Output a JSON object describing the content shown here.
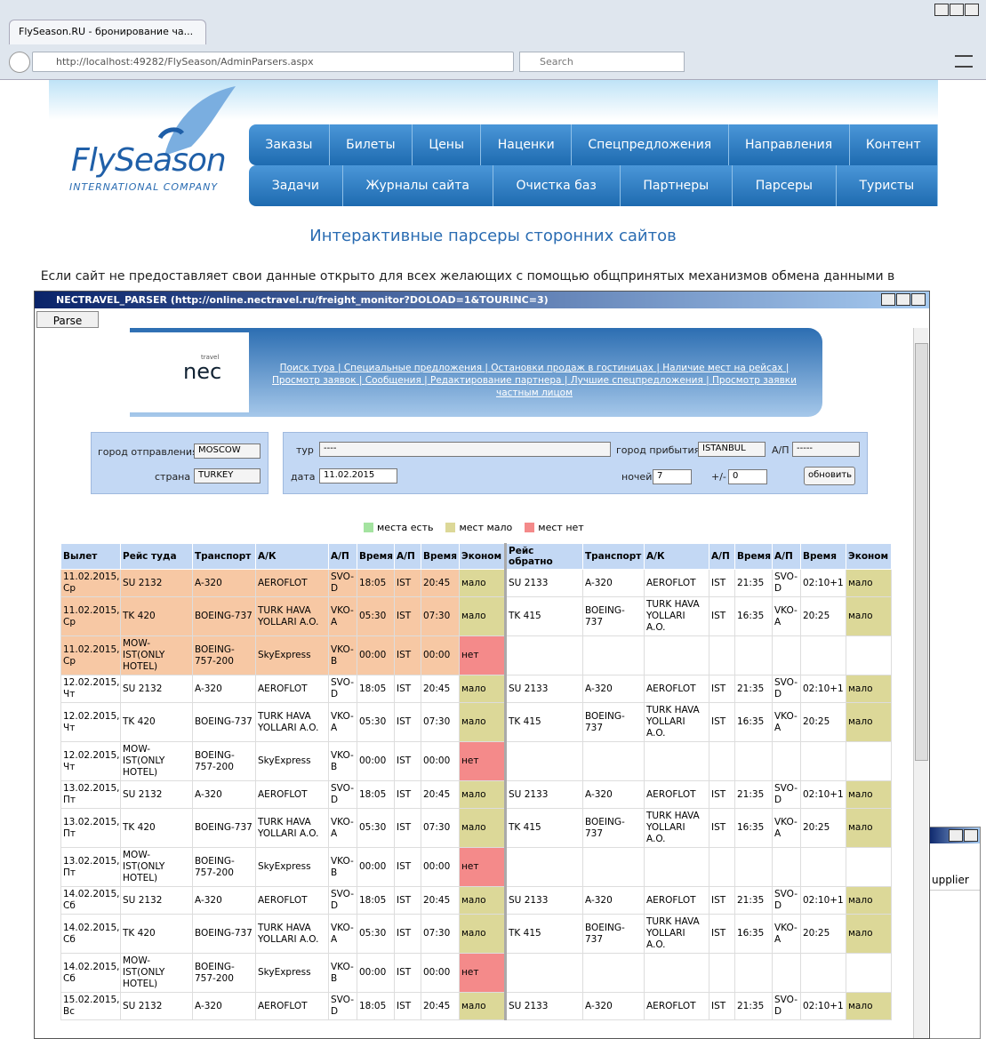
{
  "browser": {
    "tab_title": "FlySeason.RU - бронирование ча...",
    "url": "http://localhost:49282/FlySeason/AdminParsers.aspx",
    "search_placeholder": "Search"
  },
  "site": {
    "logo": "FlySeason",
    "logo_sub": "INTERNATIONAL COMPANY",
    "nav_row1": [
      "Заказы",
      "Билеты",
      "Цены",
      "Наценки",
      "Спецпредложения",
      "Направления",
      "Контент"
    ],
    "nav_row2": [
      "Задачи",
      "Журналы сайта",
      "Очистка баз",
      "Партнеры",
      "Парсеры",
      "Туристы"
    ],
    "heading": "Интерактивные парсеры сторонних сайтов",
    "intro": "Если сайт не предоставляет свои данные открыто для всех желающих с помощью общпринятых механизмов обмена данными в"
  },
  "window": {
    "title": "NECTRAVEL_PARSER  (http://online.nectravel.ru/freight_monitor?DOLOAD=1&TOURINC=3)",
    "parse_button": "Parse"
  },
  "nec": {
    "logo_small": "travel",
    "logo": "nec",
    "links": [
      "Поиск тура",
      "Специальные предложения",
      "Остановки продаж в гостиницах",
      "Наличие мест на рейсах",
      "Просмотр заявок",
      "Сообщения",
      "Редактирование партнера",
      "Лучшие спецпредложения",
      "Просмотр заявки частным лицом"
    ]
  },
  "form": {
    "departure_label": "город отправления",
    "departure": "MOSCOW",
    "country_label": "страна",
    "country": "TURKEY",
    "tour_label": "тур",
    "tour": "----",
    "arrival_label": "город прибытия",
    "arrival": "ISTANBUL",
    "airport_label": "А/П",
    "airport": "-----",
    "date_label": "дата",
    "date": "11.02.2015",
    "nights_label": "ночей",
    "nights": "7",
    "delta_label": "+/-",
    "delta": "0",
    "refresh_button": "обновить"
  },
  "legend": [
    {
      "label": "места есть",
      "color": "#a4e3a0"
    },
    {
      "label": "мест мало",
      "color": "#dcd898"
    },
    {
      "label": "мест нет",
      "color": "#f48a8a"
    }
  ],
  "economy_colors": {
    "мало": "#dcd898",
    "нет": "#f48a8a"
  },
  "table": {
    "headers": [
      "Вылет",
      "Рейс туда",
      "Транспорт",
      "А/К",
      "А/П",
      "Время",
      "А/П",
      "Время",
      "Эконом",
      "Рейс обратно",
      "Транспорт",
      "А/К",
      "А/П",
      "Время",
      "А/П",
      "Время",
      "Эконом"
    ],
    "rows": [
      [
        "11.02.2015, Ср",
        "SU 2132",
        "A-320",
        "AEROFLOT",
        "SVO-D",
        "18:05",
        "IST",
        "20:45",
        "мало",
        "SU 2133",
        "A-320",
        "AEROFLOT",
        "IST",
        "21:35",
        "SVO-D",
        "02:10+1",
        "мало"
      ],
      [
        "11.02.2015, Ср",
        "TK 420",
        "BOEING-737",
        "TURK HAVA YOLLARI A.O.",
        "VKO-A",
        "05:30",
        "IST",
        "07:30",
        "мало",
        "TK 415",
        "BOEING-737",
        "TURK HAVA YOLLARI A.O.",
        "IST",
        "16:35",
        "VKO-A",
        "20:25",
        "мало"
      ],
      [
        "11.02.2015, Ср",
        "MOW-IST(ONLY HOTEL)",
        "BOEING-757-200",
        "SkyExpress",
        "VKO-B",
        "00:00",
        "IST",
        "00:00",
        "нет",
        null,
        null,
        null,
        null,
        null,
        null,
        null,
        null
      ],
      [
        "12.02.2015, Чт",
        "SU 2132",
        "A-320",
        "AEROFLOT",
        "SVO-D",
        "18:05",
        "IST",
        "20:45",
        "мало",
        "SU 2133",
        "A-320",
        "AEROFLOT",
        "IST",
        "21:35",
        "SVO-D",
        "02:10+1",
        "мало"
      ],
      [
        "12.02.2015, Чт",
        "TK 420",
        "BOEING-737",
        "TURK HAVA YOLLARI A.O.",
        "VKO-A",
        "05:30",
        "IST",
        "07:30",
        "мало",
        "TK 415",
        "BOEING-737",
        "TURK HAVA YOLLARI A.O.",
        "IST",
        "16:35",
        "VKO-A",
        "20:25",
        "мало"
      ],
      [
        "12.02.2015, Чт",
        "MOW-IST(ONLY HOTEL)",
        "BOEING-757-200",
        "SkyExpress",
        "VKO-B",
        "00:00",
        "IST",
        "00:00",
        "нет",
        null,
        null,
        null,
        null,
        null,
        null,
        null,
        null
      ],
      [
        "13.02.2015, Пт",
        "SU 2132",
        "A-320",
        "AEROFLOT",
        "SVO-D",
        "18:05",
        "IST",
        "20:45",
        "мало",
        "SU 2133",
        "A-320",
        "AEROFLOT",
        "IST",
        "21:35",
        "SVO-D",
        "02:10+1",
        "мало"
      ],
      [
        "13.02.2015, Пт",
        "TK 420",
        "BOEING-737",
        "TURK HAVA YOLLARI A.O.",
        "VKO-A",
        "05:30",
        "IST",
        "07:30",
        "мало",
        "TK 415",
        "BOEING-737",
        "TURK HAVA YOLLARI A.O.",
        "IST",
        "16:35",
        "VKO-A",
        "20:25",
        "мало"
      ],
      [
        "13.02.2015, Пт",
        "MOW-IST(ONLY HOTEL)",
        "BOEING-757-200",
        "SkyExpress",
        "VKO-B",
        "00:00",
        "IST",
        "00:00",
        "нет",
        null,
        null,
        null,
        null,
        null,
        null,
        null,
        null
      ],
      [
        "14.02.2015, Сб",
        "SU 2132",
        "A-320",
        "AEROFLOT",
        "SVO-D",
        "18:05",
        "IST",
        "20:45",
        "мало",
        "SU 2133",
        "A-320",
        "AEROFLOT",
        "IST",
        "21:35",
        "SVO-D",
        "02:10+1",
        "мало"
      ],
      [
        "14.02.2015, Сб",
        "TK 420",
        "BOEING-737",
        "TURK HAVA YOLLARI A.O.",
        "VKO-A",
        "05:30",
        "IST",
        "07:30",
        "мало",
        "TK 415",
        "BOEING-737",
        "TURK HAVA YOLLARI A.O.",
        "IST",
        "16:35",
        "VKO-A",
        "20:25",
        "мало"
      ],
      [
        "14.02.2015, Сб",
        "MOW-IST(ONLY HOTEL)",
        "BOEING-757-200",
        "SkyExpress",
        "VKO-B",
        "00:00",
        "IST",
        "00:00",
        "нет",
        null,
        null,
        null,
        null,
        null,
        null,
        null,
        null
      ],
      [
        "15.02.2015, Вс",
        "SU 2132",
        "A-320",
        "AEROFLOT",
        "SVO-D",
        "18:05",
        "IST",
        "20:45",
        "мало",
        "SU 2133",
        "A-320",
        "AEROFLOT",
        "IST",
        "21:35",
        "SVO-D",
        "02:10+1",
        "мало"
      ]
    ]
  },
  "background_window": {
    "column": "upplier"
  }
}
